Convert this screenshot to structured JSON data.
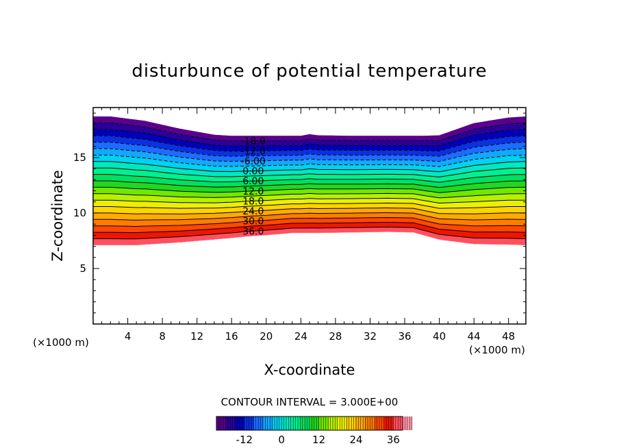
{
  "chart_data": {
    "type": "contour",
    "title": "disturbunce of potential temperature",
    "xlabel": "X-coordinate",
    "ylabel": "Z-coordinate",
    "x_unit_label": "(×1000 m)",
    "z_unit_label": "(×1000 m)",
    "xlim": [
      0,
      50
    ],
    "ylim": [
      0,
      19.5
    ],
    "x_ticks": [
      4,
      8,
      12,
      16,
      20,
      24,
      28,
      32,
      36,
      40,
      44,
      48
    ],
    "x_tick_labels": [
      "4",
      "8",
      "12",
      "16",
      "20",
      "24",
      "28",
      "32",
      "36",
      "40",
      "44",
      "48"
    ],
    "y_ticks": [
      5,
      10,
      15
    ],
    "y_tick_labels": [
      "5",
      "10",
      "15"
    ],
    "contour_interval_text": "CONTOUR INTERVAL = 3.000E+00",
    "contour_interval": 3,
    "value_range": [
      -21,
      39
    ],
    "contour_labels": [
      {
        "text": "-18.0",
        "value": -18
      },
      {
        "text": "-12.0",
        "value": -12
      },
      {
        "text": "-6.00",
        "value": -6
      },
      {
        "text": "0.00",
        "value": 0
      },
      {
        "text": "6.00",
        "value": 6
      },
      {
        "text": "12.0",
        "value": 12
      },
      {
        "text": "18.0",
        "value": 18
      },
      {
        "text": "24.0",
        "value": 24
      },
      {
        "text": "30.0",
        "value": 30
      },
      {
        "text": "36.0",
        "value": 36
      }
    ],
    "top_boundary": {
      "x": [
        0,
        2,
        6,
        10,
        14,
        16,
        20,
        24,
        25,
        26,
        30,
        34,
        38,
        40,
        44,
        48,
        50
      ],
      "z": [
        18.7,
        18.7,
        18.3,
        17.6,
        17.05,
        16.95,
        16.95,
        16.95,
        17.1,
        17.0,
        16.95,
        16.95,
        16.95,
        17.0,
        18.1,
        18.6,
        18.7
      ]
    },
    "bottom_boundary": {
      "x": [
        0,
        5,
        10,
        16,
        18,
        20,
        23,
        26,
        30,
        34,
        37,
        40,
        44,
        48,
        50
      ],
      "z": [
        7.1,
        7.1,
        7.35,
        7.75,
        7.9,
        8.0,
        8.2,
        8.2,
        8.25,
        8.3,
        8.25,
        7.6,
        7.2,
        7.15,
        7.1
      ]
    },
    "colorbar": {
      "tick_values": [
        -12,
        0,
        12,
        24,
        36
      ],
      "tick_labels": [
        "-12",
        "0",
        "12",
        "24",
        "36"
      ],
      "colors": [
        "#5a008c",
        "#2a0099",
        "#0000b8",
        "#0a30e0",
        "#1c6cff",
        "#12a8ff",
        "#00d2f0",
        "#00e8c0",
        "#00f090",
        "#00e060",
        "#20d820",
        "#70e800",
        "#b8f000",
        "#ecf000",
        "#ffd400",
        "#ffaa00",
        "#ff7c00",
        "#ff4800",
        "#ee1600",
        "#ff5060",
        "#ff9aa8"
      ]
    }
  }
}
